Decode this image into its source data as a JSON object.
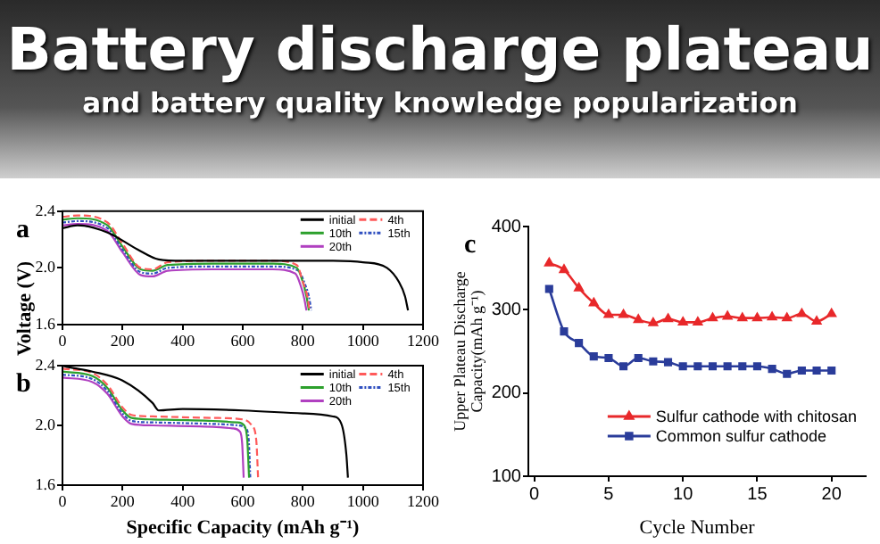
{
  "chart_data": [
    {
      "type": "line",
      "title": "Battery discharge plateau",
      "subtitle": "and battery quality knowledge popularization",
      "ylabel": "Voltage (V)",
      "annotations": [
        "a"
      ],
      "xlim": [
        0,
        1200
      ],
      "xticks": [
        0,
        200,
        400,
        600,
        800,
        1000,
        1200
      ],
      "ylim": [
        1.6,
        2.4
      ],
      "yticks": [
        1.6,
        {
          "value": 2,
          "label": "2.0"
        },
        2.4
      ],
      "grid": false,
      "legend": "top right",
      "marker": "none",
      "series": [
        {
          "name": "initial",
          "color": "#000000",
          "line_style": "solid",
          "x": [
            0,
            50,
            150,
            250,
            320,
            400,
            600,
            900,
            1000,
            1080,
            1120,
            1140,
            1150
          ],
          "values": [
            2.28,
            2.3,
            2.25,
            2.13,
            2.06,
            2.05,
            2.05,
            2.05,
            2.04,
            2.0,
            1.9,
            1.8,
            1.7
          ]
        },
        {
          "name": "4th",
          "color": "#ff5a5a",
          "line_style": "dashed",
          "x": [
            0,
            50,
            150,
            200,
            260,
            300,
            350,
            500,
            700,
            780,
            800,
            815,
            822
          ],
          "values": [
            2.36,
            2.37,
            2.32,
            2.17,
            2.0,
            1.99,
            2.04,
            2.05,
            2.05,
            2.02,
            1.9,
            1.8,
            1.7
          ]
        },
        {
          "name": "10th",
          "color": "#2ca02c",
          "line_style": "solid",
          "x": [
            0,
            50,
            150,
            200,
            260,
            300,
            350,
            500,
            700,
            780,
            800,
            812,
            820
          ],
          "values": [
            2.34,
            2.35,
            2.3,
            2.15,
            1.99,
            1.98,
            2.02,
            2.03,
            2.03,
            2.0,
            1.9,
            1.8,
            1.7
          ]
        },
        {
          "name": "15th",
          "color": "#3050c0",
          "line_style": "dashdot",
          "x": [
            0,
            50,
            150,
            200,
            260,
            300,
            350,
            500,
            700,
            785,
            808,
            820,
            828
          ],
          "values": [
            2.32,
            2.33,
            2.28,
            2.13,
            1.97,
            1.96,
            2.0,
            2.01,
            2.01,
            1.98,
            1.88,
            1.8,
            1.7
          ]
        },
        {
          "name": "20th",
          "color": "#b040c0",
          "line_style": "solid",
          "x": [
            0,
            50,
            150,
            200,
            260,
            300,
            350,
            500,
            700,
            775,
            795,
            805,
            812
          ],
          "values": [
            2.3,
            2.31,
            2.26,
            2.11,
            1.95,
            1.94,
            1.98,
            1.99,
            1.99,
            1.96,
            1.86,
            1.78,
            1.7
          ]
        }
      ]
    },
    {
      "type": "line",
      "xlabel": "Specific Capacity (mAh g⁻¹)",
      "annotations": [
        "b"
      ],
      "xlim": [
        0,
        1200
      ],
      "xticks": [
        0,
        200,
        400,
        600,
        800,
        1000,
        1200
      ],
      "ylim": [
        1.6,
        2.4
      ],
      "yticks": [
        1.6,
        {
          "value": 2,
          "label": "2.0"
        },
        2.4
      ],
      "grid": false,
      "legend": "top right",
      "marker": "none",
      "series": [
        {
          "name": "initial",
          "color": "#000000",
          "line_style": "solid",
          "x": [
            0,
            20,
            100,
            200,
            300,
            320,
            400,
            600,
            800,
            900,
            930,
            945,
            950
          ],
          "values": [
            2.4,
            2.39,
            2.36,
            2.3,
            2.15,
            2.1,
            2.11,
            2.1,
            2.08,
            2.06,
            2.0,
            1.8,
            1.65
          ]
        },
        {
          "name": "4th",
          "color": "#ff5a5a",
          "line_style": "dashed",
          "x": [
            0,
            100,
            150,
            200,
            230,
            300,
            500,
            600,
            630,
            645,
            651
          ],
          "values": [
            2.38,
            2.35,
            2.27,
            2.12,
            2.07,
            2.06,
            2.05,
            2.04,
            2.0,
            1.9,
            1.65
          ]
        },
        {
          "name": "10th",
          "color": "#2ca02c",
          "line_style": "solid",
          "x": [
            0,
            100,
            150,
            200,
            230,
            300,
            500,
            580,
            605,
            615,
            621
          ],
          "values": [
            2.36,
            2.33,
            2.25,
            2.1,
            2.05,
            2.04,
            2.03,
            2.02,
            2.0,
            1.9,
            1.65
          ]
        },
        {
          "name": "15th",
          "color": "#3050c0",
          "line_style": "dashdot",
          "x": [
            0,
            100,
            150,
            200,
            230,
            300,
            500,
            585,
            610,
            620,
            625
          ],
          "values": [
            2.34,
            2.31,
            2.23,
            2.08,
            2.03,
            2.02,
            2.01,
            2.0,
            1.98,
            1.9,
            1.65
          ]
        },
        {
          "name": "20th",
          "color": "#b040c0",
          "line_style": "solid",
          "x": [
            0,
            100,
            150,
            200,
            230,
            300,
            500,
            565,
            590,
            598,
            603
          ],
          "values": [
            2.32,
            2.29,
            2.21,
            2.06,
            2.01,
            2.0,
            1.99,
            1.98,
            1.96,
            1.88,
            1.65
          ]
        }
      ]
    },
    {
      "type": "line",
      "xlabel": "Cycle Number",
      "ylabel": "Upper Plateau Discharge\nCapacity(mAh g⁻¹)",
      "annotations": [
        "c"
      ],
      "xlim": [
        -0.4,
        22.3
      ],
      "xticks": [
        0,
        5,
        10,
        15,
        20
      ],
      "ylim": [
        100,
        400
      ],
      "yticks": [
        100,
        200,
        300,
        400
      ],
      "grid": false,
      "legend": "bottom right",
      "line_style": "solid",
      "x": [
        1,
        2,
        3,
        4,
        5,
        6,
        7,
        8,
        9,
        10,
        11,
        12,
        13,
        14,
        15,
        16,
        17,
        18,
        19,
        20
      ],
      "series": [
        {
          "name": "Sulfur cathode with chitosan",
          "color": "#e8282a",
          "marker": "triangle",
          "values": [
            356,
            348,
            326,
            308,
            294,
            294,
            288,
            284,
            289,
            285,
            285,
            290,
            292,
            290,
            290,
            291,
            290,
            295,
            286,
            295
          ]
        },
        {
          "name": "Common sulfur cathode",
          "color": "#2a3c9a",
          "marker": "square",
          "values": [
            325,
            274,
            260,
            244,
            242,
            232,
            242,
            238,
            237,
            232,
            232,
            232,
            232,
            232,
            232,
            229,
            223,
            227,
            227,
            227
          ]
        }
      ]
    }
  ]
}
